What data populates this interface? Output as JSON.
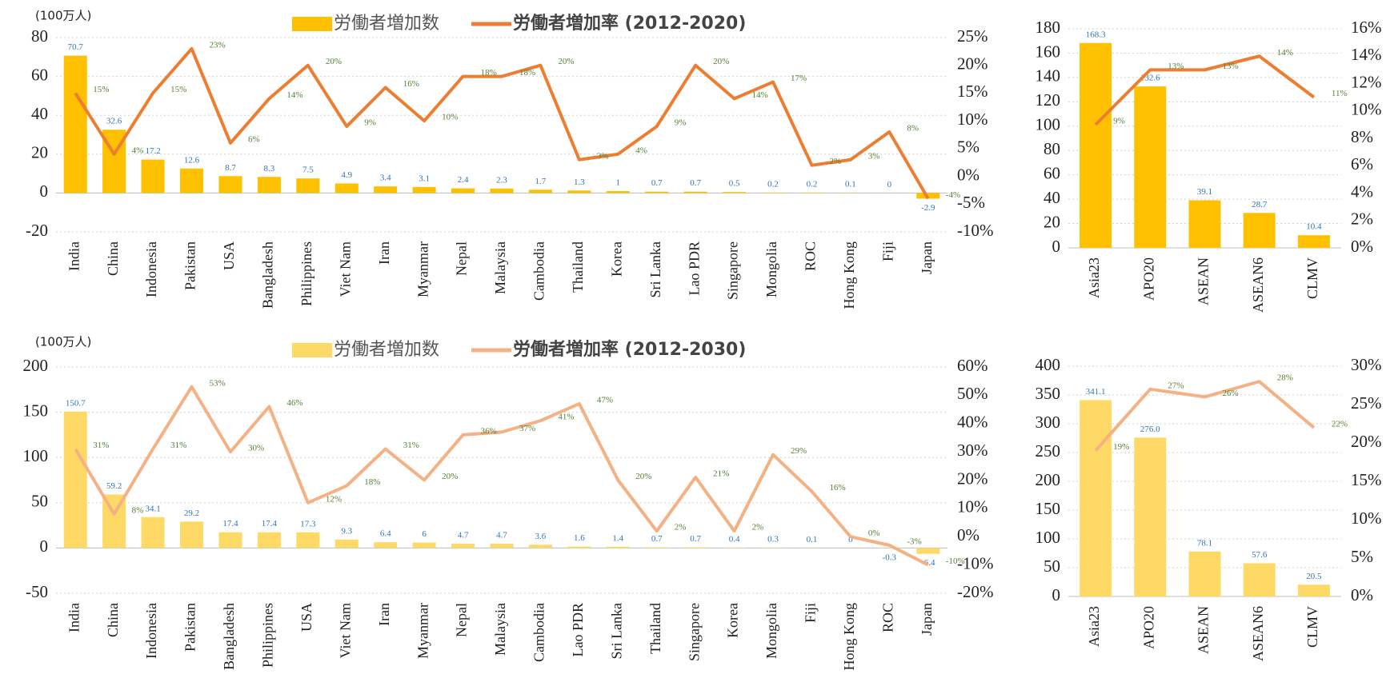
{
  "chart_data": [
    {
      "type": "combo",
      "y_label": "(100万人)",
      "categories": [
        "India",
        "China",
        "Indonesia",
        "Pakistan",
        "USA",
        "Bangladesh",
        "Philippines",
        "Viet Nam",
        "Iran",
        "Myanmar",
        "Nepal",
        "Malaysia",
        "Cambodia",
        "Thailand",
        "Korea",
        "Sri Lanka",
        "Lao PDR",
        "Singapore",
        "Mongolia",
        "ROC",
        "Hong Kong",
        "Fiji",
        "Japan"
      ],
      "series": [
        {
          "name": "労働者増加数",
          "color": "#FFC000",
          "values": [
            70.7,
            32.6,
            17.2,
            12.6,
            8.7,
            8.3,
            7.5,
            4.9,
            3.4,
            3.1,
            2.4,
            2.3,
            1.7,
            1.3,
            1,
            0.7,
            0.7,
            0.5,
            0.2,
            0.2,
            0.1,
            0,
            -2.9
          ]
        },
        {
          "name": "労働者増加率 (2012-2020)",
          "color": "#ED7D31",
          "axis": "y2",
          "values": [
            15,
            4,
            15,
            23,
            6,
            14,
            20,
            9,
            16,
            10,
            18,
            18,
            20,
            3,
            4,
            9,
            20,
            14,
            17,
            2,
            3,
            8,
            -4
          ],
          "value_labels": [
            "15%",
            "4%",
            "15%",
            "23%",
            "6%",
            "14%",
            "20%",
            "9%",
            "16%",
            "10%",
            "18%",
            "18%",
            "20%",
            "3%",
            "4%",
            "9%",
            "20%",
            "14%",
            "17%",
            "2%",
            "3%",
            "8%",
            "-4%"
          ]
        }
      ],
      "ylim": [
        -20,
        80
      ],
      "yticks": [
        -20,
        0,
        20,
        40,
        60,
        80
      ],
      "y2lim": [
        -10,
        25
      ],
      "y2ticks": [
        {
          "value": -10,
          "label": "-10%"
        },
        {
          "value": -5,
          "label": "-5%"
        },
        {
          "value": 0,
          "label": "0%"
        },
        {
          "value": 5,
          "label": "5%"
        },
        {
          "value": 10,
          "label": "10%"
        },
        {
          "value": 15,
          "label": "15%"
        },
        {
          "value": 20,
          "label": "20%"
        },
        {
          "value": 25,
          "label": "25%"
        }
      ],
      "grid": true
    },
    {
      "type": "combo",
      "categories": [
        "Asia23",
        "APO20",
        "ASEAN",
        "ASEAN6",
        "CLMV"
      ],
      "series": [
        {
          "color": "#FFC000",
          "values": [
            168.3,
            132.6,
            39.1,
            28.7,
            10.4
          ]
        },
        {
          "color": "#ED7D31",
          "axis": "y2",
          "values": [
            9,
            13,
            13,
            14,
            11
          ],
          "value_labels": [
            "9%",
            "13%",
            "13%",
            "14%",
            "11%"
          ]
        }
      ],
      "ylim": [
        0,
        180
      ],
      "yticks": [
        0,
        20,
        40,
        60,
        80,
        100,
        120,
        140,
        160,
        180
      ],
      "y2lim": [
        0,
        16
      ],
      "y2ticks": [
        {
          "value": 0,
          "label": "0%"
        },
        {
          "value": 2,
          "label": "2%"
        },
        {
          "value": 4,
          "label": "4%"
        },
        {
          "value": 6,
          "label": "6%"
        },
        {
          "value": 8,
          "label": "8%"
        },
        {
          "value": 10,
          "label": "10%"
        },
        {
          "value": 12,
          "label": "12%"
        },
        {
          "value": 14,
          "label": "14%"
        },
        {
          "value": 16,
          "label": "16%"
        }
      ],
      "grid": true
    },
    {
      "type": "combo",
      "y_label": "(100万人)",
      "categories": [
        "India",
        "China",
        "Indonesia",
        "Pakistan",
        "Bangladesh",
        "Philippines",
        "USA",
        "Viet Nam",
        "Iran",
        "Myanmar",
        "Nepal",
        "Malaysia",
        "Cambodia",
        "Lao PDR",
        "Sri Lanka",
        "Thailand",
        "Singapore",
        "Korea",
        "Mongolia",
        "Fiji",
        "Hong Kong",
        "ROC",
        "Japan"
      ],
      "series": [
        {
          "name": "労働者増加数",
          "color": "#FFD966",
          "values": [
            150.7,
            59.2,
            34.1,
            29.2,
            17.4,
            17.4,
            17.3,
            9.3,
            6.4,
            6,
            4.7,
            4.7,
            3.6,
            1.6,
            1.4,
            0.7,
            0.7,
            0.4,
            0.3,
            0.1,
            0,
            -0.3,
            -6.4
          ]
        },
        {
          "name": "労働者増加率 (2012-2030)",
          "color": "#F4B183",
          "axis": "y2",
          "values": [
            31,
            8,
            31,
            53,
            30,
            46,
            12,
            18,
            31,
            20,
            36,
            37,
            41,
            47,
            20,
            2,
            21,
            2,
            29,
            16,
            0,
            -3,
            -10
          ],
          "value_labels": [
            "31%",
            "8%",
            "31%",
            "53%",
            "30%",
            "46%",
            "12%",
            "18%",
            "31%",
            "20%",
            "36%",
            "37%",
            "41%",
            "47%",
            "20%",
            "2%",
            "21%",
            "2%",
            "29%",
            "16%",
            "0%",
            "-3%",
            "-10%"
          ]
        }
      ],
      "ylim": [
        -50,
        200
      ],
      "yticks": [
        -50,
        0,
        50,
        100,
        150,
        200
      ],
      "y2lim": [
        -20,
        60
      ],
      "y2ticks": [
        {
          "value": -20,
          "label": "-20%"
        },
        {
          "value": -10,
          "label": "-10%"
        },
        {
          "value": 0,
          "label": "0%"
        },
        {
          "value": 10,
          "label": "10%"
        },
        {
          "value": 20,
          "label": "20%"
        },
        {
          "value": 30,
          "label": "30%"
        },
        {
          "value": 40,
          "label": "40%"
        },
        {
          "value": 50,
          "label": "50%"
        },
        {
          "value": 60,
          "label": "60%"
        }
      ],
      "grid": true
    },
    {
      "type": "combo",
      "categories": [
        "Asia23",
        "APO20",
        "ASEAN",
        "ASEAN6",
        "CLMV"
      ],
      "series": [
        {
          "color": "#FFD966",
          "values": [
            341.1,
            276,
            78.1,
            57.6,
            20.5
          ],
          "value_labels": [
            "341.1",
            "276.0",
            "78.1",
            "57.6",
            "20.5"
          ]
        },
        {
          "color": "#F4B183",
          "axis": "y2",
          "values": [
            19,
            27,
            26,
            28,
            22
          ],
          "value_labels": [
            "19%",
            "27%",
            "26%",
            "28%",
            "22%"
          ]
        }
      ],
      "ylim": [
        0,
        400
      ],
      "yticks": [
        0,
        50,
        100,
        150,
        200,
        250,
        300,
        350,
        400
      ],
      "y2lim": [
        0,
        30
      ],
      "y2ticks": [
        {
          "value": 0,
          "label": "0%"
        },
        {
          "value": 5,
          "label": "5%"
        },
        {
          "value": 10,
          "label": "10%"
        },
        {
          "value": 15,
          "label": "15%"
        },
        {
          "value": 20,
          "label": "20%"
        },
        {
          "value": 25,
          "label": "25%"
        },
        {
          "value": 30,
          "label": "30%"
        }
      ],
      "grid": true
    }
  ]
}
